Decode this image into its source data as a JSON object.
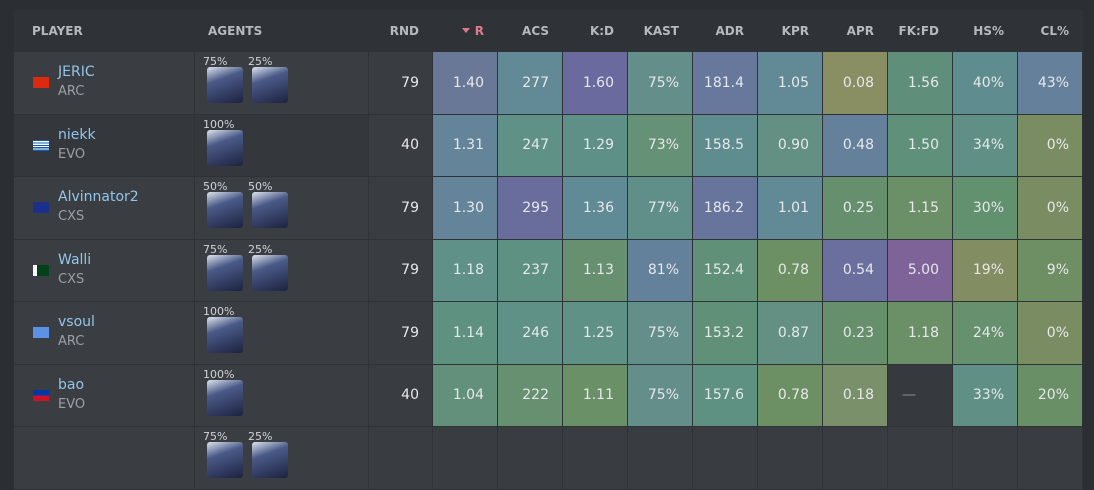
{
  "header": {
    "columns": [
      "PLAYER",
      "AGENTS",
      "RND",
      "R",
      "ACS",
      "K:D",
      "KAST",
      "ADR",
      "KPR",
      "APR",
      "FK:FD",
      "HS%",
      "CL%"
    ]
  },
  "table": {
    "rows": [
      {
        "name": "JERIC",
        "team": "ARC",
        "agents": [
          "75%",
          "25%"
        ],
        "values": [
          "79",
          "1.40",
          "277",
          "1.60",
          "75%",
          "181.4",
          "1.05",
          "0.08",
          "1.56",
          "40%",
          "43%"
        ],
        "colors": [
          "#6a7898",
          "#628a96",
          "#6b6a9e",
          "#638e8a",
          "#67789c",
          "#628a96",
          "#8a8f63",
          "#5f8f7a",
          "#5f8d8f",
          "#64809a"
        ]
      },
      {
        "name": "niekk",
        "team": "EVO",
        "agents": [
          "100%"
        ],
        "values": [
          "40",
          "1.31",
          "247",
          "1.29",
          "73%",
          "158.5",
          "0.90",
          "0.48",
          "1.50",
          "34%",
          "0%"
        ],
        "colors": [
          "#64849a",
          "#5f9187",
          "#5f9087",
          "#659176",
          "#5f8d8f",
          "#649083",
          "#64809a",
          "#5f917a",
          "#609085",
          "#7a8d62"
        ]
      },
      {
        "name": "Alvinnator2",
        "team": "CXS",
        "agents": [
          "50%",
          "50%"
        ],
        "values": [
          "79",
          "1.30",
          "295",
          "1.36",
          "77%",
          "186.2",
          "1.01",
          "0.25",
          "1.15",
          "30%",
          "0%"
        ],
        "colors": [
          "#64849a",
          "#686d9c",
          "#608a95",
          "#608f8a",
          "#67749c",
          "#628a96",
          "#658f6d",
          "#6b9068",
          "#62916f",
          "#7a8d62"
        ]
      },
      {
        "name": "Walli",
        "team": "CXS",
        "agents": [
          "75%",
          "25%"
        ],
        "values": [
          "79",
          "1.18",
          "237",
          "1.13",
          "81%",
          "152.4",
          "0.78",
          "0.54",
          "5.00",
          "19%",
          "9%"
        ],
        "colors": [
          "#5f9188",
          "#5f9182",
          "#66906f",
          "#63819a",
          "#609178",
          "#6c9063",
          "#6a6f9e",
          "#7e6399",
          "#838d62",
          "#6e8e63"
        ]
      },
      {
        "name": "vsoul",
        "team": "ARC",
        "agents": [
          "100%"
        ],
        "values": [
          "79",
          "1.14",
          "246",
          "1.25",
          "75%",
          "153.2",
          "0.87",
          "0.23",
          "1.18",
          "24%",
          "0%"
        ],
        "colors": [
          "#5f9181",
          "#5f9187",
          "#5f9187",
          "#638e8a",
          "#609178",
          "#649083",
          "#65906b",
          "#6b9068",
          "#66906e",
          "#7a8d62"
        ]
      },
      {
        "name": "bao",
        "team": "EVO",
        "agents": [
          "100%"
        ],
        "values": [
          "40",
          "1.04",
          "222",
          "1.11",
          "75%",
          "157.6",
          "0.78",
          "0.18",
          "—",
          "33%",
          "20%"
        ],
        "colors": [
          "#63907a",
          "#669070",
          "#6a9068",
          "#638e8a",
          "#5f9182",
          "#6c9063",
          "#79906a",
          "#363a3f",
          "#609085",
          "#698f66"
        ]
      },
      {
        "agents": [
          "75%",
          "25%"
        ]
      }
    ]
  }
}
